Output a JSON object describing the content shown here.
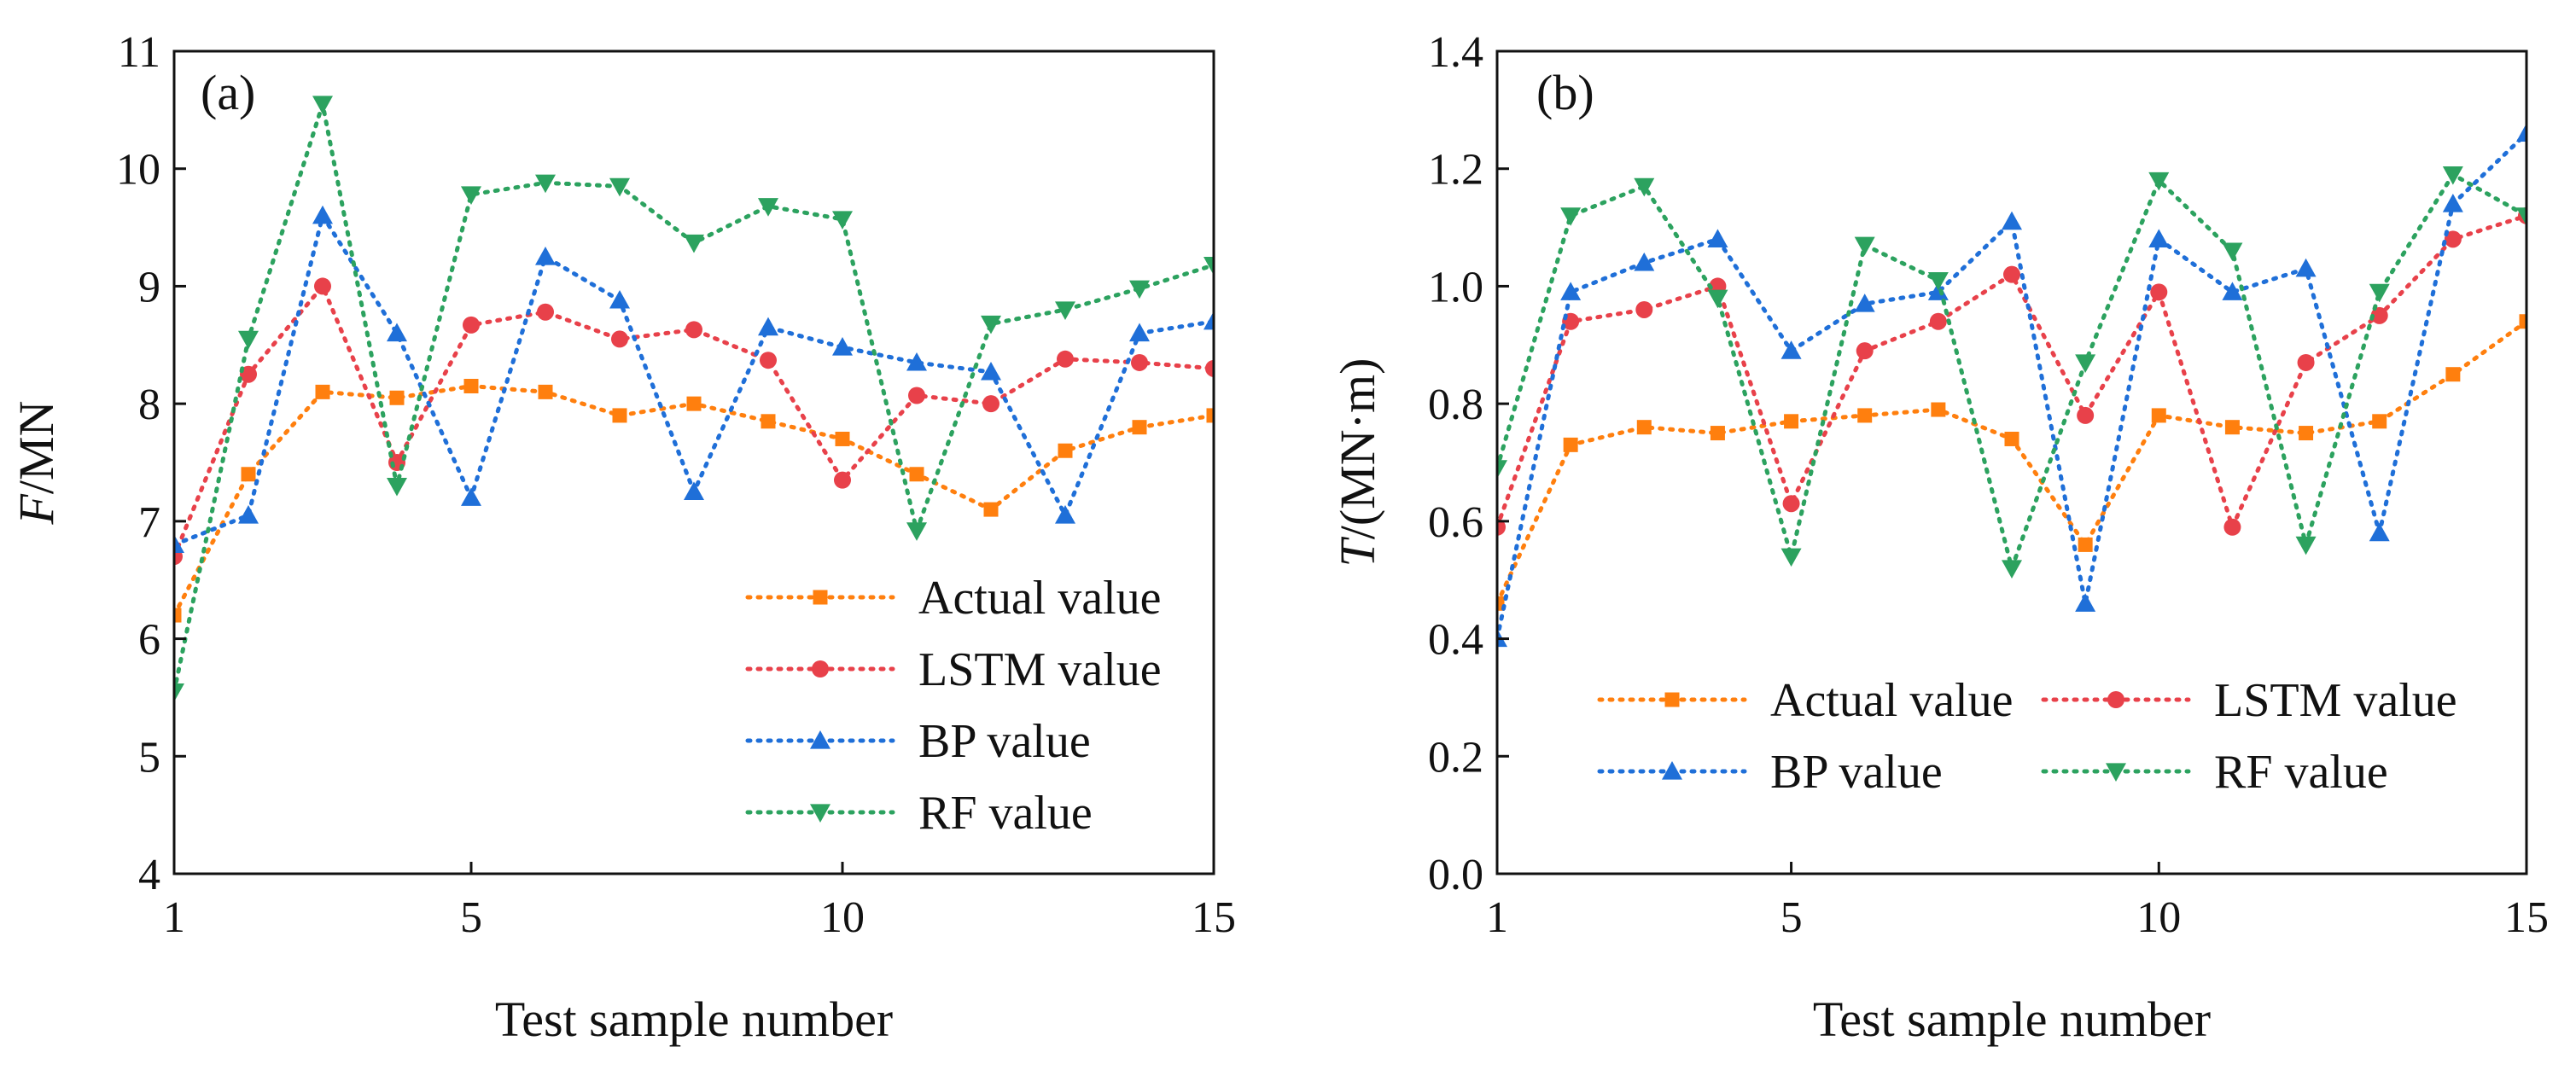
{
  "colors": {
    "actual": "#ff7f0e",
    "lstm": "#e8414a",
    "bp": "#1f6fd8",
    "rf": "#2ca25f"
  },
  "chart_data": [
    {
      "type": "line",
      "label": "(a)",
      "xlabel": "Test sample number",
      "ylabel_italic": "F",
      "ylabel_rest": "/MN",
      "xlim": [
        1,
        15
      ],
      "ylim": [
        4,
        11
      ],
      "xticks": [
        1,
        5,
        10,
        15
      ],
      "yticks": [
        4,
        5,
        6,
        7,
        8,
        9,
        10,
        11
      ],
      "ytick_labels": [
        "4",
        "5",
        "6",
        "7",
        "8",
        "9",
        "10",
        "11"
      ],
      "x": [
        1,
        2,
        3,
        4,
        5,
        6,
        7,
        8,
        9,
        10,
        11,
        12,
        13,
        14,
        15
      ],
      "legend_position": "lower-right",
      "legend_columns": 1,
      "series": [
        {
          "name": "Actual value",
          "key": "actual",
          "marker": "square",
          "values": [
            6.2,
            7.4,
            8.1,
            8.05,
            8.15,
            8.1,
            7.9,
            8.0,
            7.85,
            7.7,
            7.4,
            7.1,
            7.6,
            7.8,
            7.9
          ]
        },
        {
          "name": "LSTM value",
          "key": "lstm",
          "marker": "circle",
          "values": [
            6.7,
            8.25,
            9.0,
            7.5,
            8.67,
            8.78,
            8.55,
            8.63,
            8.37,
            7.35,
            8.07,
            8.0,
            8.38,
            8.35,
            8.3
          ]
        },
        {
          "name": "BP value",
          "key": "bp",
          "marker": "triangle-up",
          "values": [
            6.8,
            7.05,
            9.6,
            8.6,
            7.2,
            9.25,
            8.88,
            7.25,
            8.65,
            8.48,
            8.35,
            8.27,
            7.05,
            8.6,
            8.7
          ]
        },
        {
          "name": "RF value",
          "key": "rf",
          "marker": "triangle-down",
          "values": [
            5.55,
            8.55,
            10.55,
            7.3,
            9.78,
            9.88,
            9.85,
            9.37,
            9.68,
            9.57,
            6.92,
            8.68,
            8.8,
            8.98,
            9.18
          ]
        }
      ]
    },
    {
      "type": "line",
      "label": "(b)",
      "xlabel": "Test sample number",
      "ylabel_italic": "T",
      "ylabel_rest": "/(MN·m)",
      "xlim": [
        1,
        15
      ],
      "ylim": [
        0.0,
        1.4
      ],
      "xticks": [
        1,
        5,
        10,
        15
      ],
      "yticks": [
        0.0,
        0.2,
        0.4,
        0.6,
        0.8,
        1.0,
        1.2,
        1.4
      ],
      "ytick_labels": [
        "0.0",
        "0.2",
        "0.4",
        "0.6",
        "0.8",
        "1.0",
        "1.2",
        "1.4"
      ],
      "x": [
        1,
        2,
        3,
        4,
        5,
        6,
        7,
        8,
        9,
        10,
        11,
        12,
        13,
        14,
        15
      ],
      "legend_position": "lower-center",
      "legend_columns": 2,
      "series": [
        {
          "name": "Actual value",
          "key": "actual",
          "marker": "square",
          "values": [
            0.46,
            0.73,
            0.76,
            0.75,
            0.77,
            0.78,
            0.79,
            0.74,
            0.56,
            0.78,
            0.76,
            0.75,
            0.77,
            0.85,
            0.94
          ]
        },
        {
          "name": "LSTM value",
          "key": "lstm",
          "marker": "circle",
          "values": [
            0.59,
            0.94,
            0.96,
            1.0,
            0.63,
            0.89,
            0.94,
            1.02,
            0.78,
            0.99,
            0.59,
            0.87,
            0.95,
            1.08,
            1.12
          ]
        },
        {
          "name": "BP value",
          "key": "bp",
          "marker": "triangle-up",
          "values": [
            0.4,
            0.99,
            1.04,
            1.08,
            0.89,
            0.97,
            0.99,
            1.11,
            0.46,
            1.08,
            0.99,
            1.03,
            0.58,
            1.14,
            1.26
          ]
        },
        {
          "name": "RF value",
          "key": "rf",
          "marker": "triangle-down",
          "values": [
            0.69,
            1.12,
            1.17,
            0.98,
            0.54,
            1.07,
            1.01,
            0.52,
            0.87,
            1.18,
            1.06,
            0.56,
            0.99,
            1.19,
            1.12
          ]
        }
      ]
    }
  ]
}
